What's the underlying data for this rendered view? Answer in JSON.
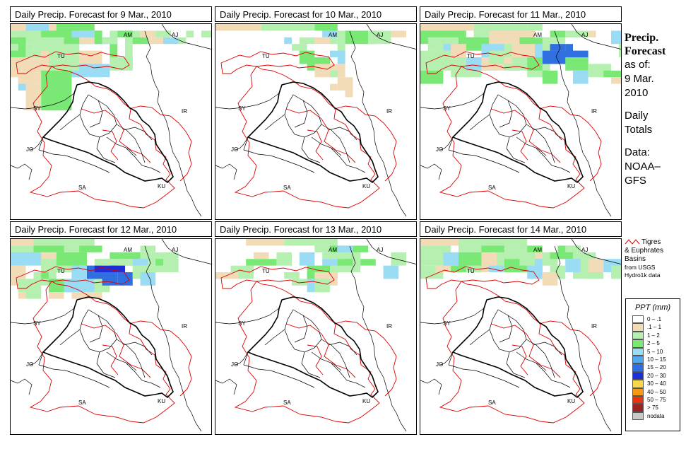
{
  "panels": [
    {
      "title": "Daily Precip. Forecast for  9 Mar., 2010",
      "precip": [
        [
          0,
          0,
          8,
          1
        ],
        [
          0,
          1,
          3,
          1
        ],
        [
          1,
          1,
          4,
          2
        ],
        [
          4,
          1,
          3,
          3
        ],
        [
          5,
          2,
          4,
          6
        ],
        [
          2,
          0,
          3,
          1
        ],
        [
          6,
          0,
          5,
          3
        ],
        [
          0,
          2,
          1,
          1
        ],
        [
          9,
          1,
          3,
          1
        ],
        [
          10,
          1,
          1,
          1
        ],
        [
          11,
          2,
          2,
          1
        ],
        [
          13,
          1,
          1,
          2
        ],
        [
          13,
          3,
          1,
          3
        ],
        [
          3,
          2,
          6,
          5
        ],
        [
          3,
          4,
          9,
          4
        ],
        [
          7,
          2,
          7,
          1
        ],
        [
          15,
          1,
          2,
          2
        ],
        [
          15,
          3,
          1,
          3
        ],
        [
          0,
          2,
          2,
          5
        ],
        [
          2,
          4,
          2,
          3
        ],
        [
          1,
          5,
          2,
          5
        ],
        [
          0,
          5,
          4,
          3
        ],
        [
          1,
          8,
          3,
          1
        ],
        [
          2,
          9,
          2,
          4
        ],
        [
          4,
          7,
          4,
          6
        ],
        [
          8,
          6,
          5,
          2
        ],
        [
          13,
          5,
          3,
          2
        ],
        [
          16,
          2,
          2,
          1
        ],
        [
          17,
          1,
          2,
          1
        ],
        [
          19,
          1,
          2,
          1
        ],
        [
          20,
          2,
          2,
          1
        ],
        [
          23,
          1,
          1,
          1
        ],
        [
          25,
          1,
          2,
          1
        ],
        [
          14,
          1,
          2,
          1
        ],
        [
          5,
          3,
          4,
          4
        ],
        [
          9,
          1,
          2,
          2
        ],
        [
          11,
          1,
          1,
          2
        ],
        [
          12,
          2,
          2,
          1
        ],
        [
          6,
          2,
          2,
          3
        ],
        [
          7,
          1,
          2,
          2
        ],
        [
          8,
          1,
          3,
          1
        ],
        [
          2,
          3,
          1,
          1
        ],
        [
          18,
          2,
          2,
          1
        ],
        [
          22,
          2,
          1,
          1
        ],
        [
          0,
          3,
          1,
          1
        ]
      ]
    },
    {
      "title": "Daily Precip. Forecast for  10 Mar., 2010",
      "precip": [
        [
          0,
          0,
          6,
          1
        ],
        [
          6,
          0,
          4,
          1
        ],
        [
          10,
          0,
          3,
          1
        ],
        [
          13,
          0,
          3,
          1
        ],
        [
          16,
          1,
          1,
          3
        ],
        [
          14,
          1,
          2,
          1
        ],
        [
          12,
          5,
          3,
          2
        ],
        [
          13,
          6,
          4,
          2
        ],
        [
          15,
          7,
          1,
          1
        ],
        [
          11,
          4,
          2,
          2
        ],
        [
          16,
          4,
          1,
          2
        ],
        [
          15,
          2,
          1,
          1
        ],
        [
          17,
          1,
          4,
          2
        ],
        [
          20,
          1,
          3,
          2
        ],
        [
          23,
          1,
          2,
          1
        ],
        [
          9,
          2,
          1,
          1
        ],
        [
          10,
          3,
          2,
          1
        ],
        [
          15,
          9,
          1,
          1
        ],
        [
          16,
          8,
          2,
          2
        ],
        [
          17,
          10,
          1,
          1
        ],
        [
          15,
          4,
          2,
          1
        ],
        [
          13,
          2,
          2,
          1
        ],
        [
          11,
          2,
          2,
          1
        ]
      ]
    },
    {
      "title": "Daily Precip. Forecast for  11 Mar., 2010",
      "precip": [
        [
          0,
          0,
          7,
          1
        ],
        [
          7,
          0,
          7,
          2
        ],
        [
          14,
          0,
          2,
          1
        ],
        [
          0,
          1,
          6,
          2
        ],
        [
          3,
          2,
          6,
          2
        ],
        [
          2,
          3,
          4,
          2
        ],
        [
          5,
          2,
          5,
          2
        ],
        [
          9,
          1,
          6,
          3
        ],
        [
          10,
          3,
          8,
          2
        ],
        [
          13,
          2,
          4,
          2
        ],
        [
          16,
          3,
          4,
          3
        ],
        [
          18,
          4,
          4,
          2
        ],
        [
          19,
          5,
          3,
          2
        ],
        [
          19,
          1,
          3,
          1
        ],
        [
          22,
          1,
          1,
          1
        ],
        [
          25,
          1,
          3,
          2
        ],
        [
          26,
          3,
          2,
          2
        ],
        [
          0,
          4,
          4,
          3
        ],
        [
          0,
          7,
          3,
          2
        ],
        [
          4,
          6,
          4,
          2
        ],
        [
          6,
          5,
          4,
          2
        ],
        [
          8,
          5,
          4,
          2
        ],
        [
          12,
          5,
          3,
          2
        ],
        [
          14,
          6,
          3,
          2
        ],
        [
          16,
          7,
          2,
          2
        ],
        [
          20,
          7,
          2,
          2
        ],
        [
          22,
          6,
          3,
          2
        ],
        [
          24,
          7,
          3,
          1
        ],
        [
          25,
          8,
          3,
          1
        ],
        [
          11,
          6,
          2,
          1
        ],
        [
          15,
          3,
          2,
          2
        ],
        [
          16,
          4,
          2,
          2
        ],
        [
          16,
          2,
          3,
          2
        ],
        [
          17,
          1,
          2,
          1
        ],
        [
          17,
          3,
          2,
          1
        ],
        [
          12,
          3,
          3,
          2
        ],
        [
          6,
          2,
          2,
          2
        ],
        [
          2,
          4,
          3,
          2
        ],
        [
          1,
          2,
          2,
          2
        ],
        [
          14,
          5,
          2,
          2
        ],
        [
          8,
          3,
          3,
          2
        ],
        [
          9,
          4,
          2,
          2
        ],
        [
          4,
          3,
          2,
          2
        ],
        [
          3,
          5,
          3,
          1
        ]
      ]
    },
    {
      "title": "Daily Precip. Forecast for  12 Mar., 2010",
      "precip": [
        [
          0,
          0,
          5,
          1
        ],
        [
          3,
          0,
          4,
          2
        ],
        [
          6,
          0,
          5,
          2
        ],
        [
          9,
          1,
          3,
          1
        ],
        [
          0,
          1,
          3,
          2
        ],
        [
          1,
          2,
          4,
          2
        ],
        [
          3,
          1,
          4,
          1
        ],
        [
          4,
          2,
          2,
          2
        ],
        [
          4,
          3,
          5,
          2
        ],
        [
          6,
          2,
          4,
          2
        ],
        [
          8,
          4,
          4,
          2
        ],
        [
          10,
          4,
          3,
          2
        ],
        [
          11,
          4,
          2,
          1
        ],
        [
          12,
          4,
          2,
          1
        ],
        [
          14,
          4,
          1,
          1
        ],
        [
          15,
          2,
          2,
          2
        ],
        [
          16,
          2,
          2,
          2
        ],
        [
          18,
          2,
          3,
          2
        ],
        [
          19,
          3,
          2,
          2
        ],
        [
          17,
          1,
          2,
          1
        ],
        [
          0,
          2,
          2,
          2
        ],
        [
          0,
          4,
          2,
          3
        ],
        [
          1,
          6,
          3,
          2
        ],
        [
          3,
          5,
          3,
          2
        ],
        [
          5,
          6,
          3,
          2
        ],
        [
          7,
          6,
          5,
          2
        ],
        [
          11,
          6,
          2,
          2
        ],
        [
          12,
          5,
          2,
          2
        ],
        [
          14,
          5,
          2,
          2
        ],
        [
          16,
          4,
          2,
          2
        ],
        [
          17,
          5,
          2,
          2
        ],
        [
          20,
          2,
          2,
          3
        ],
        [
          21,
          3,
          1,
          2
        ],
        [
          13,
          2,
          4,
          2
        ],
        [
          12,
          3,
          2,
          1
        ],
        [
          15,
          3,
          2,
          1
        ],
        [
          4,
          5,
          1,
          1
        ],
        [
          2,
          6,
          2,
          3
        ],
        [
          1,
          8,
          1,
          1
        ],
        [
          5,
          8,
          2,
          1
        ],
        [
          8,
          8,
          4,
          1
        ],
        [
          11,
          3,
          3,
          1
        ],
        [
          10,
          5,
          2,
          1
        ],
        [
          13,
          4,
          2,
          1
        ],
        [
          14,
          3,
          2,
          1
        ],
        [
          16,
          3,
          2,
          1
        ],
        [
          18,
          4,
          2,
          1
        ],
        [
          19,
          4,
          2,
          1
        ]
      ]
    },
    {
      "title": "Daily Precip. Forecast for  13 Mar., 2010",
      "precip": [
        [
          4,
          0,
          5,
          1
        ],
        [
          9,
          0,
          4,
          1
        ],
        [
          13,
          0,
          3,
          2
        ],
        [
          15,
          1,
          2,
          2
        ],
        [
          16,
          2,
          3,
          3
        ],
        [
          14,
          3,
          3,
          2
        ],
        [
          12,
          4,
          4,
          2
        ],
        [
          13,
          5,
          3,
          2
        ],
        [
          17,
          2,
          2,
          2
        ],
        [
          18,
          1,
          2,
          1
        ],
        [
          11,
          2,
          2,
          2
        ],
        [
          8,
          2,
          2,
          2
        ],
        [
          6,
          3,
          2,
          1
        ],
        [
          2,
          4,
          3,
          2
        ],
        [
          0,
          5,
          3,
          1
        ],
        [
          12,
          6,
          3,
          2
        ],
        [
          10,
          6,
          2,
          1
        ],
        [
          15,
          4,
          3,
          1
        ],
        [
          16,
          3,
          2,
          1
        ],
        [
          15,
          2,
          2,
          1
        ],
        [
          16,
          1,
          2,
          1
        ],
        [
          14,
          5,
          2,
          1
        ],
        [
          13,
          6,
          2,
          2
        ],
        [
          23,
          2,
          2,
          2
        ],
        [
          19,
          3,
          2,
          1
        ],
        [
          22,
          4,
          2,
          2
        ],
        [
          9,
          5,
          2,
          1
        ],
        [
          4,
          3,
          3,
          1
        ],
        [
          5,
          2,
          2,
          1
        ],
        [
          14,
          2,
          2,
          1
        ]
      ]
    },
    {
      "title": "Daily Precip. Forecast for  14 Mar., 2010",
      "precip": [
        [
          0,
          0,
          5,
          1
        ],
        [
          5,
          0,
          5,
          2
        ],
        [
          10,
          0,
          4,
          2
        ],
        [
          13,
          1,
          3,
          2
        ],
        [
          0,
          1,
          4,
          3
        ],
        [
          3,
          2,
          4,
          2
        ],
        [
          5,
          2,
          4,
          3
        ],
        [
          8,
          2,
          3,
          3
        ],
        [
          10,
          2,
          4,
          2
        ],
        [
          11,
          3,
          5,
          2
        ],
        [
          14,
          3,
          2,
          2
        ],
        [
          16,
          2,
          2,
          2
        ],
        [
          18,
          1,
          3,
          2
        ],
        [
          20,
          2,
          3,
          3
        ],
        [
          22,
          3,
          2,
          2
        ],
        [
          24,
          3,
          3,
          2
        ],
        [
          25,
          4,
          3,
          2
        ],
        [
          0,
          4,
          3,
          2
        ],
        [
          3,
          4,
          3,
          1
        ],
        [
          17,
          4,
          2,
          2
        ],
        [
          14,
          4,
          2,
          2
        ],
        [
          16,
          5,
          2,
          2
        ],
        [
          20,
          5,
          3,
          1
        ],
        [
          22,
          5,
          2,
          1
        ],
        [
          12,
          3,
          2,
          2
        ],
        [
          19,
          3,
          2,
          2
        ],
        [
          11,
          1,
          3,
          2
        ],
        [
          8,
          1,
          3,
          1
        ],
        [
          2,
          4,
          2,
          1
        ],
        [
          6,
          4,
          2,
          1
        ],
        [
          9,
          4,
          2,
          1
        ],
        [
          13,
          2,
          2,
          2
        ],
        [
          16,
          3,
          2,
          1
        ],
        [
          17,
          2,
          2,
          1
        ],
        [
          19,
          1,
          2,
          1
        ],
        [
          15,
          2,
          1,
          1
        ]
      ]
    }
  ],
  "map_labels": [
    "AM",
    "AJ",
    "TU",
    "SY",
    "IR",
    "JO",
    "SA",
    "KU"
  ],
  "side": {
    "title1": "Precip.",
    "title2": "Forecast",
    "as_of": "as of:",
    "date1": "9 Mar.",
    "date2": "2010",
    "daily1": "Daily",
    "daily2": "Totals",
    "data1": "Data:",
    "data2": "NOAA–",
    "data3": "GFS"
  },
  "basin": {
    "line1": "Tigres",
    "line2": "& Euphrates",
    "line3": "Basins",
    "line4": "from USGS",
    "line5": "Hydro1k data",
    "line_color": "#dd0000"
  },
  "legend": {
    "title": "PPT (mm)",
    "items": [
      {
        "label": "0 – .1",
        "color": "#ffffff"
      },
      {
        "label": ".1 – 1",
        "color": "#f2dcb8"
      },
      {
        "label": "1 – 2",
        "color": "#b6f0b0"
      },
      {
        "label": "2 – 5",
        "color": "#7ae874"
      },
      {
        "label": "5 – 10",
        "color": "#9bdcf5"
      },
      {
        "label": "10 – 15",
        "color": "#52a9ee"
      },
      {
        "label": "15 – 20",
        "color": "#2f6fe0"
      },
      {
        "label": "20 – 30",
        "color": "#1d2ed8"
      },
      {
        "label": "30 – 40",
        "color": "#f6d84a"
      },
      {
        "label": "40 – 50",
        "color": "#f59a10"
      },
      {
        "label": "50 – 75",
        "color": "#e8350e"
      },
      {
        "label": "> 75",
        "color": "#9a2424"
      },
      {
        "label": "nodata",
        "color": "#c8c8c8"
      }
    ]
  }
}
